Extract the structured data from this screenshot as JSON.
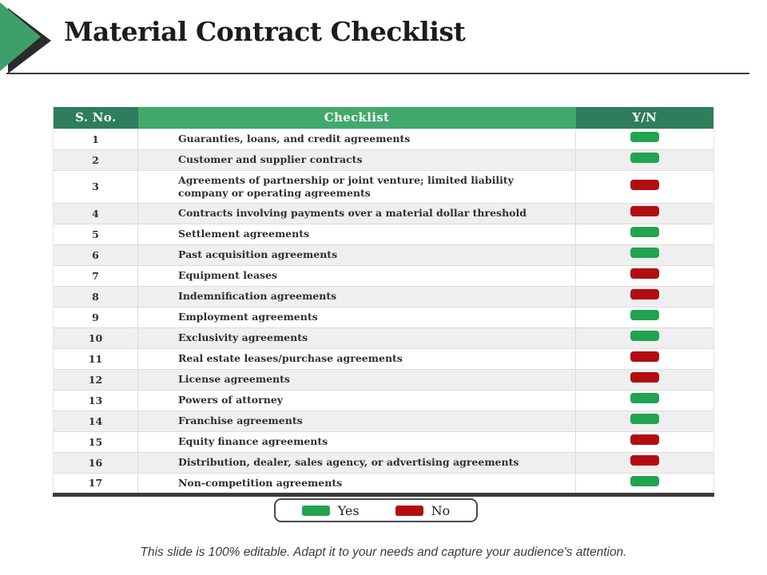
{
  "slide": {
    "title": "Material Contract Checklist",
    "footer": "This slide is 100% editable. Adapt it to your needs and capture your audience's attention."
  },
  "table": {
    "headers": {
      "sno": "S. No.",
      "checklist": "Checklist",
      "yn": "Y/N"
    },
    "rows": [
      {
        "sno": "1",
        "checklist": "Guaranties, loans, and credit agreements",
        "yn": "yes"
      },
      {
        "sno": "2",
        "checklist": "Customer and supplier contracts",
        "yn": "yes"
      },
      {
        "sno": "3",
        "checklist": "Agreements of partnership or joint venture; limited liability company or operating agreements",
        "yn": "no"
      },
      {
        "sno": "4",
        "checklist": "Contracts involving payments over a material dollar threshold",
        "yn": "no"
      },
      {
        "sno": "5",
        "checklist": "Settlement agreements",
        "yn": "yes"
      },
      {
        "sno": "6",
        "checklist": "Past acquisition agreements",
        "yn": "yes"
      },
      {
        "sno": "7",
        "checklist": "Equipment leases",
        "yn": "no"
      },
      {
        "sno": "8",
        "checklist": "Indemnification agreements",
        "yn": "no"
      },
      {
        "sno": "9",
        "checklist": "Employment agreements",
        "yn": "yes"
      },
      {
        "sno": "10",
        "checklist": "Exclusivity agreements",
        "yn": "yes"
      },
      {
        "sno": "11",
        "checklist": "Real estate leases/purchase agreements",
        "yn": "no"
      },
      {
        "sno": "12",
        "checklist": "License agreements",
        "yn": "no"
      },
      {
        "sno": "13",
        "checklist": "Powers of attorney",
        "yn": "yes"
      },
      {
        "sno": "14",
        "checklist": "Franchise agreements",
        "yn": "yes"
      },
      {
        "sno": "15",
        "checklist": "Equity finance agreements",
        "yn": "no"
      },
      {
        "sno": "16",
        "checklist": "Distribution, dealer, sales agency, or advertising agreements",
        "yn": "no"
      },
      {
        "sno": "17",
        "checklist": "Non-competition agreements",
        "yn": "yes"
      }
    ]
  },
  "legend": {
    "yes_label": "Yes",
    "no_label": "No"
  },
  "colors": {
    "header_dark_green": "#2E7D5C",
    "header_light_green": "#42A96C",
    "yes_green": "#21A351",
    "no_red": "#B20D11",
    "arrow_green": "#3DA06A"
  }
}
